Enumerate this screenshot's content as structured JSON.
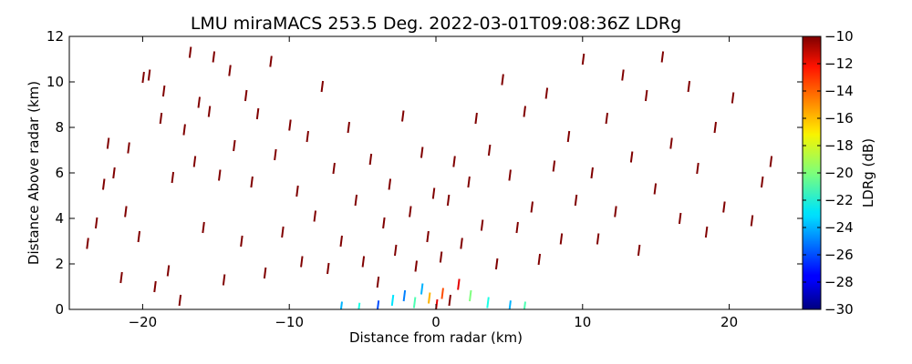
{
  "chart_data": {
    "type": "scatter",
    "title": "LMU miraMACS 253.5 Deg. 2022-03-01T09:08:36Z  LDRg",
    "xlabel": "Distance from radar (km)",
    "ylabel": "Distance Above radar  (km)",
    "xlim": [
      -25,
      25
    ],
    "ylim": [
      0,
      12
    ],
    "xticks": [
      "−20",
      "−10",
      "0",
      "10",
      "20"
    ],
    "yticks": [
      "0",
      "2",
      "4",
      "6",
      "8",
      "10",
      "12"
    ],
    "grid": false,
    "colorbar": {
      "label": "LDRg (dB)",
      "range": [
        -30,
        -10
      ],
      "ticks": [
        "−30",
        "−28",
        "−26",
        "−24",
        "−22",
        "−20",
        "−18",
        "−16",
        "−14",
        "−12",
        "−10"
      ],
      "colormap": "jet"
    },
    "series": [
      {
        "description_units": "x km, y km, LDRg dB",
        "points": [
          [
            -23.8,
            2.9,
            -10
          ],
          [
            -23.2,
            3.8,
            -10
          ],
          [
            -22.7,
            5.5,
            -10
          ],
          [
            -22.4,
            7.3,
            -10
          ],
          [
            -22.0,
            6.0,
            -10
          ],
          [
            -21.5,
            1.4,
            -10
          ],
          [
            -21.2,
            4.3,
            -10
          ],
          [
            -21.0,
            7.1,
            -10
          ],
          [
            -20.3,
            3.2,
            -10
          ],
          [
            -20.0,
            10.2,
            -10
          ],
          [
            -19.6,
            10.3,
            -10
          ],
          [
            -19.2,
            1.0,
            -10
          ],
          [
            -18.8,
            8.4,
            -10
          ],
          [
            -18.6,
            9.6,
            -10
          ],
          [
            -18.3,
            1.7,
            -10
          ],
          [
            -18.0,
            5.8,
            -10
          ],
          [
            -17.5,
            0.4,
            -10
          ],
          [
            -17.2,
            7.9,
            -10
          ],
          [
            -16.8,
            11.3,
            -10
          ],
          [
            -16.5,
            6.5,
            -10
          ],
          [
            -16.2,
            9.1,
            -10
          ],
          [
            -15.9,
            3.6,
            -10
          ],
          [
            -15.5,
            8.7,
            -10
          ],
          [
            -15.2,
            11.1,
            -10
          ],
          [
            -14.8,
            5.9,
            -10
          ],
          [
            -14.5,
            1.3,
            -10
          ],
          [
            -14.1,
            10.5,
            -10
          ],
          [
            -13.8,
            7.2,
            -10
          ],
          [
            -13.3,
            3.0,
            -10
          ],
          [
            -13.0,
            9.4,
            -10
          ],
          [
            -12.6,
            5.6,
            -10
          ],
          [
            -12.2,
            8.6,
            -10
          ],
          [
            -11.7,
            1.6,
            -10
          ],
          [
            -11.3,
            10.9,
            -10
          ],
          [
            -11.0,
            6.8,
            -10
          ],
          [
            -10.5,
            3.4,
            -10
          ],
          [
            -10.0,
            8.1,
            -10
          ],
          [
            -9.5,
            5.2,
            -10
          ],
          [
            -9.2,
            2.1,
            -10
          ],
          [
            -8.8,
            7.6,
            -10
          ],
          [
            -8.3,
            4.1,
            -10
          ],
          [
            -7.8,
            9.8,
            -10
          ],
          [
            -7.4,
            1.8,
            -10
          ],
          [
            -7.0,
            6.2,
            -10
          ],
          [
            -6.5,
            3.0,
            -10
          ],
          [
            -6.0,
            8.0,
            -10
          ],
          [
            -5.5,
            4.8,
            -10
          ],
          [
            -5.0,
            2.1,
            -10
          ],
          [
            -4.5,
            6.6,
            -10
          ],
          [
            -4.0,
            1.2,
            -10
          ],
          [
            -3.6,
            3.8,
            -10
          ],
          [
            -3.2,
            5.5,
            -10
          ],
          [
            -2.8,
            2.6,
            -10
          ],
          [
            -2.3,
            8.5,
            -10
          ],
          [
            -1.8,
            4.3,
            -10
          ],
          [
            -1.4,
            1.9,
            -10
          ],
          [
            -1.0,
            6.9,
            -10
          ],
          [
            -0.6,
            3.2,
            -10
          ],
          [
            -0.2,
            5.1,
            -10
          ],
          [
            0.3,
            2.3,
            -10
          ],
          [
            0.8,
            4.8,
            -10
          ],
          [
            1.2,
            6.5,
            -10
          ],
          [
            1.7,
            2.9,
            -10
          ],
          [
            2.2,
            5.6,
            -10
          ],
          [
            2.7,
            8.4,
            -10
          ],
          [
            3.1,
            3.7,
            -10
          ],
          [
            3.6,
            7.0,
            -10
          ],
          [
            4.1,
            2.0,
            -10
          ],
          [
            4.5,
            10.1,
            -10
          ],
          [
            5.0,
            5.9,
            -10
          ],
          [
            5.5,
            3.6,
            -10
          ],
          [
            6.0,
            8.7,
            -10
          ],
          [
            6.5,
            4.5,
            -10
          ],
          [
            7.0,
            2.2,
            -10
          ],
          [
            7.5,
            9.5,
            -10
          ],
          [
            8.0,
            6.3,
            -10
          ],
          [
            8.5,
            3.1,
            -10
          ],
          [
            9.0,
            7.6,
            -10
          ],
          [
            9.5,
            4.8,
            -10
          ],
          [
            10.0,
            11.0,
            -10
          ],
          [
            10.6,
            6.0,
            -10
          ],
          [
            11.0,
            3.1,
            -10
          ],
          [
            11.6,
            8.4,
            -10
          ],
          [
            12.2,
            4.3,
            -10
          ],
          [
            12.7,
            10.3,
            -10
          ],
          [
            13.3,
            6.7,
            -10
          ],
          [
            13.8,
            2.6,
            -10
          ],
          [
            14.3,
            9.4,
            -10
          ],
          [
            14.9,
            5.3,
            -10
          ],
          [
            15.4,
            11.1,
            -10
          ],
          [
            16.0,
            7.3,
            -10
          ],
          [
            16.6,
            4.0,
            -10
          ],
          [
            17.2,
            9.8,
            -10
          ],
          [
            17.8,
            6.2,
            -10
          ],
          [
            18.4,
            3.4,
            -10
          ],
          [
            19.0,
            8.0,
            -10
          ],
          [
            19.6,
            4.5,
            -10
          ],
          [
            20.2,
            9.3,
            -10
          ],
          [
            21.5,
            3.9,
            -10
          ],
          [
            22.2,
            5.6,
            -10
          ],
          [
            22.8,
            6.5,
            -10
          ],
          [
            -6.5,
            0.1,
            -24
          ],
          [
            -5.3,
            0.05,
            -22
          ],
          [
            -4.0,
            0.15,
            -26
          ],
          [
            -3.0,
            0.4,
            -23
          ],
          [
            -2.2,
            0.6,
            -25
          ],
          [
            -1.5,
            0.3,
            -21
          ],
          [
            -1.0,
            0.9,
            -24
          ],
          [
            -0.5,
            0.5,
            -16
          ],
          [
            0.0,
            0.2,
            -12
          ],
          [
            0.4,
            0.7,
            -14
          ],
          [
            0.9,
            0.4,
            -10
          ],
          [
            1.5,
            1.1,
            -12
          ],
          [
            2.3,
            0.6,
            -20
          ],
          [
            3.5,
            0.3,
            -22
          ],
          [
            5.0,
            0.15,
            -24
          ],
          [
            6.0,
            0.1,
            -21
          ]
        ]
      }
    ]
  }
}
